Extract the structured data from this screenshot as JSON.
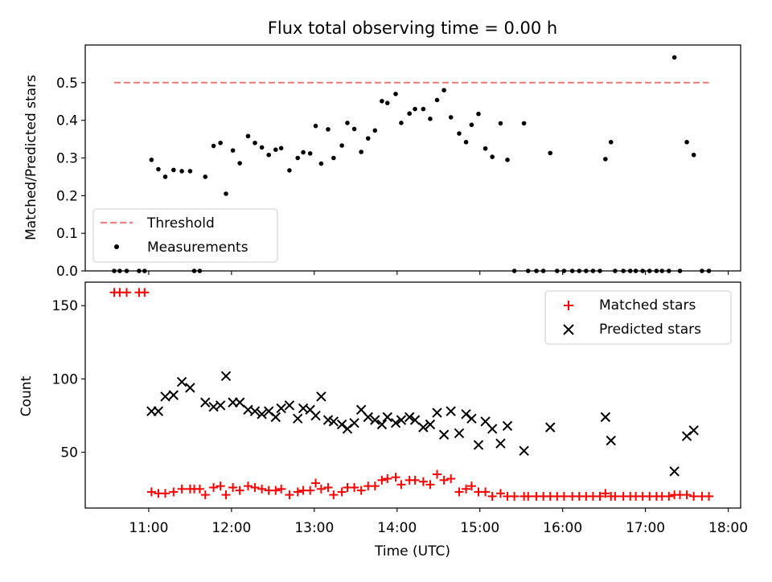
{
  "figure": {
    "title": "Flux total observing time = 0.00 h"
  },
  "chart_data": [
    {
      "type": "scatter",
      "title": "Flux total observing time = 0.00 h",
      "xlabel": "",
      "ylabel": "Matched/Predicted stars",
      "xlim": [
        "10:14",
        "18:09"
      ],
      "ylim": [
        0,
        0.6
      ],
      "yticks": [
        0.0,
        0.1,
        0.2,
        0.3,
        0.4,
        0.5
      ],
      "ytick_labels": [
        "0.0",
        "0.1",
        "0.2",
        "0.3",
        "0.4",
        "0.5"
      ],
      "xticks": [
        "11:00",
        "12:00",
        "13:00",
        "14:00",
        "15:00",
        "16:00",
        "17:00",
        "18:00"
      ],
      "legend": {
        "position": "lower-left",
        "entries": [
          {
            "label": "Threshold",
            "style": "dashed-line",
            "color": "#f08080"
          },
          {
            "label": "Measurements",
            "style": "dot",
            "color": "#000000"
          }
        ]
      },
      "series": [
        {
          "name": "Threshold",
          "style": "dashed-line",
          "color": "#f08080",
          "points": [
            [
              "10:35",
              0.5
            ],
            [
              "17:46",
              0.5
            ]
          ]
        },
        {
          "name": "Measurements",
          "style": "dot",
          "color": "#000000",
          "points": [
            [
              "10:35",
              0.0
            ],
            [
              "10:39",
              0.0
            ],
            [
              "10:44",
              0.0
            ],
            [
              "10:53",
              0.0
            ],
            [
              "10:57",
              0.0
            ],
            [
              "11:02",
              0.295
            ],
            [
              "11:07",
              0.27
            ],
            [
              "11:12",
              0.25
            ],
            [
              "11:18",
              0.268
            ],
            [
              "11:24",
              0.265
            ],
            [
              "11:30",
              0.265
            ],
            [
              "11:33",
              0.0
            ],
            [
              "11:37",
              0.0
            ],
            [
              "11:41",
              0.25
            ],
            [
              "11:47",
              0.332
            ],
            [
              "11:52",
              0.34
            ],
            [
              "11:56",
              0.205
            ],
            [
              "12:01",
              0.32
            ],
            [
              "12:06",
              0.286
            ],
            [
              "12:12",
              0.358
            ],
            [
              "12:17",
              0.34
            ],
            [
              "12:22",
              0.328
            ],
            [
              "12:27",
              0.308
            ],
            [
              "12:32",
              0.322
            ],
            [
              "12:36",
              0.326
            ],
            [
              "12:42",
              0.267
            ],
            [
              "12:48",
              0.3
            ],
            [
              "12:52",
              0.315
            ],
            [
              "12:57",
              0.312
            ],
            [
              "13:01",
              0.385
            ],
            [
              "13:05",
              0.285
            ],
            [
              "13:10",
              0.376
            ],
            [
              "13:14",
              0.3
            ],
            [
              "13:20",
              0.333
            ],
            [
              "13:24",
              0.393
            ],
            [
              "13:29",
              0.377
            ],
            [
              "13:34",
              0.316
            ],
            [
              "13:39",
              0.352
            ],
            [
              "13:44",
              0.373
            ],
            [
              "13:49",
              0.451
            ],
            [
              "13:53",
              0.446
            ],
            [
              "13:59",
              0.47
            ],
            [
              "14:03",
              0.393
            ],
            [
              "14:09",
              0.418
            ],
            [
              "14:13",
              0.43
            ],
            [
              "14:19",
              0.43
            ],
            [
              "14:24",
              0.404
            ],
            [
              "14:29",
              0.454
            ],
            [
              "14:34",
              0.48
            ],
            [
              "14:39",
              0.408
            ],
            [
              "14:45",
              0.365
            ],
            [
              "14:50",
              0.342
            ],
            [
              "14:54",
              0.388
            ],
            [
              "14:59",
              0.417
            ],
            [
              "15:04",
              0.325
            ],
            [
              "15:09",
              0.303
            ],
            [
              "15:15",
              0.392
            ],
            [
              "15:20",
              0.295
            ],
            [
              "15:25",
              0.0
            ],
            [
              "15:32",
              0.392
            ],
            [
              "15:35",
              0.0
            ],
            [
              "15:41",
              0.0
            ],
            [
              "15:46",
              0.0
            ],
            [
              "15:51",
              0.313
            ],
            [
              "15:56",
              0.0
            ],
            [
              "16:01",
              0.0
            ],
            [
              "16:07",
              0.0
            ],
            [
              "16:12",
              0.0
            ],
            [
              "16:17",
              0.0
            ],
            [
              "16:22",
              0.0
            ],
            [
              "16:27",
              0.0
            ],
            [
              "16:31",
              0.297
            ],
            [
              "16:35",
              0.342
            ],
            [
              "16:38",
              0.0
            ],
            [
              "16:44",
              0.0
            ],
            [
              "16:49",
              0.0
            ],
            [
              "16:53",
              0.0
            ],
            [
              "16:58",
              0.0
            ],
            [
              "17:03",
              0.0
            ],
            [
              "17:08",
              0.0
            ],
            [
              "17:12",
              0.0
            ],
            [
              "17:17",
              0.0
            ],
            [
              "17:21",
              0.567
            ],
            [
              "17:25",
              0.0
            ],
            [
              "17:30",
              0.342
            ],
            [
              "17:35",
              0.308
            ],
            [
              "17:41",
              0.0
            ],
            [
              "17:46",
              0.0
            ]
          ]
        }
      ]
    },
    {
      "type": "scatter",
      "title": "",
      "xlabel": "Time (UTC)",
      "ylabel": "Count",
      "xlim": [
        "10:14",
        "18:09"
      ],
      "ylim": [
        12,
        166
      ],
      "yticks": [
        50,
        100,
        150
      ],
      "xticks": [
        "11:00",
        "12:00",
        "13:00",
        "14:00",
        "15:00",
        "16:00",
        "17:00",
        "18:00"
      ],
      "legend": {
        "position": "top-right",
        "entries": [
          {
            "label": "Matched stars",
            "style": "plus",
            "color": "#ff0000"
          },
          {
            "label": "Predicted stars",
            "style": "cross",
            "color": "#000000"
          }
        ]
      },
      "series": [
        {
          "name": "Matched stars",
          "style": "plus",
          "color": "#ff0000",
          "points": [
            [
              "10:35",
              159
            ],
            [
              "10:39",
              159
            ],
            [
              "10:44",
              159
            ],
            [
              "10:53",
              159
            ],
            [
              "10:57",
              159
            ],
            [
              "11:02",
              23
            ],
            [
              "11:07",
              22
            ],
            [
              "11:12",
              22
            ],
            [
              "11:18",
              23
            ],
            [
              "11:24",
              25
            ],
            [
              "11:30",
              25
            ],
            [
              "11:33",
              25
            ],
            [
              "11:37",
              25
            ],
            [
              "11:41",
              21
            ],
            [
              "11:47",
              26
            ],
            [
              "11:52",
              27
            ],
            [
              "11:56",
              21
            ],
            [
              "12:01",
              26
            ],
            [
              "12:06",
              24
            ],
            [
              "12:12",
              27
            ],
            [
              "12:17",
              26
            ],
            [
              "12:22",
              25
            ],
            [
              "12:27",
              24
            ],
            [
              "12:32",
              24
            ],
            [
              "12:36",
              25
            ],
            [
              "12:42",
              21
            ],
            [
              "12:48",
              23
            ],
            [
              "12:52",
              24
            ],
            [
              "12:57",
              24
            ],
            [
              "13:01",
              29
            ],
            [
              "13:05",
              25
            ],
            [
              "13:10",
              26
            ],
            [
              "13:14",
              21
            ],
            [
              "13:20",
              23
            ],
            [
              "13:24",
              26
            ],
            [
              "13:29",
              26
            ],
            [
              "13:34",
              24
            ],
            [
              "13:39",
              27
            ],
            [
              "13:44",
              27
            ],
            [
              "13:49",
              31
            ],
            [
              "13:53",
              32
            ],
            [
              "13:59",
              33
            ],
            [
              "14:03",
              28
            ],
            [
              "14:09",
              31
            ],
            [
              "14:13",
              31
            ],
            [
              "14:19",
              30
            ],
            [
              "14:24",
              28
            ],
            [
              "14:29",
              35
            ],
            [
              "14:34",
              31
            ],
            [
              "14:39",
              32
            ],
            [
              "14:45",
              23
            ],
            [
              "14:50",
              25
            ],
            [
              "14:54",
              27
            ],
            [
              "14:59",
              23
            ],
            [
              "15:04",
              23
            ],
            [
              "15:09",
              20
            ],
            [
              "15:15",
              22
            ],
            [
              "15:20",
              20
            ],
            [
              "15:25",
              20
            ],
            [
              "15:32",
              20
            ],
            [
              "15:35",
              20
            ],
            [
              "15:41",
              20
            ],
            [
              "15:46",
              20
            ],
            [
              "15:51",
              20
            ],
            [
              "15:56",
              20
            ],
            [
              "16:01",
              20
            ],
            [
              "16:07",
              20
            ],
            [
              "16:12",
              20
            ],
            [
              "16:17",
              20
            ],
            [
              "16:22",
              20
            ],
            [
              "16:27",
              20
            ],
            [
              "16:31",
              22
            ],
            [
              "16:35",
              20
            ],
            [
              "16:38",
              20
            ],
            [
              "16:44",
              20
            ],
            [
              "16:49",
              20
            ],
            [
              "16:53",
              20
            ],
            [
              "16:58",
              20
            ],
            [
              "17:03",
              20
            ],
            [
              "17:08",
              20
            ],
            [
              "17:12",
              20
            ],
            [
              "17:17",
              20
            ],
            [
              "17:21",
              21
            ],
            [
              "17:25",
              21
            ],
            [
              "17:30",
              21
            ],
            [
              "17:35",
              20
            ],
            [
              "17:41",
              20
            ],
            [
              "17:46",
              20
            ]
          ]
        },
        {
          "name": "Predicted stars",
          "style": "cross",
          "color": "#000000",
          "points": [
            [
              "11:02",
              78
            ],
            [
              "11:07",
              78
            ],
            [
              "11:12",
              88
            ],
            [
              "11:18",
              89
            ],
            [
              "11:24",
              98
            ],
            [
              "11:30",
              94
            ],
            [
              "11:41",
              84
            ],
            [
              "11:47",
              81
            ],
            [
              "11:52",
              82
            ],
            [
              "11:56",
              102
            ],
            [
              "12:01",
              84
            ],
            [
              "12:06",
              84
            ],
            [
              "12:12",
              79
            ],
            [
              "12:17",
              78
            ],
            [
              "12:22",
              76
            ],
            [
              "12:27",
              78
            ],
            [
              "12:32",
              74
            ],
            [
              "12:36",
              80
            ],
            [
              "12:42",
              82
            ],
            [
              "12:48",
              73
            ],
            [
              "12:52",
              80
            ],
            [
              "12:57",
              79
            ],
            [
              "13:01",
              75
            ],
            [
              "13:05",
              88
            ],
            [
              "13:10",
              72
            ],
            [
              "13:14",
              71
            ],
            [
              "13:20",
              69
            ],
            [
              "13:24",
              66
            ],
            [
              "13:29",
              70
            ],
            [
              "13:34",
              79
            ],
            [
              "13:39",
              74
            ],
            [
              "13:44",
              72
            ],
            [
              "13:49",
              69
            ],
            [
              "13:53",
              74
            ],
            [
              "13:59",
              70
            ],
            [
              "14:03",
              72
            ],
            [
              "14:09",
              74
            ],
            [
              "14:13",
              72
            ],
            [
              "14:19",
              67
            ],
            [
              "14:24",
              69
            ],
            [
              "14:29",
              77
            ],
            [
              "14:34",
              62
            ],
            [
              "14:39",
              78
            ],
            [
              "14:45",
              63
            ],
            [
              "14:50",
              76
            ],
            [
              "14:54",
              73
            ],
            [
              "14:59",
              55
            ],
            [
              "15:04",
              71
            ],
            [
              "15:09",
              66
            ],
            [
              "15:15",
              56
            ],
            [
              "15:20",
              68
            ],
            [
              "15:32",
              51
            ],
            [
              "15:51",
              67
            ],
            [
              "16:31",
              74
            ],
            [
              "16:35",
              58
            ],
            [
              "17:21",
              37
            ],
            [
              "17:30",
              61
            ],
            [
              "17:35",
              65
            ]
          ]
        }
      ]
    }
  ]
}
